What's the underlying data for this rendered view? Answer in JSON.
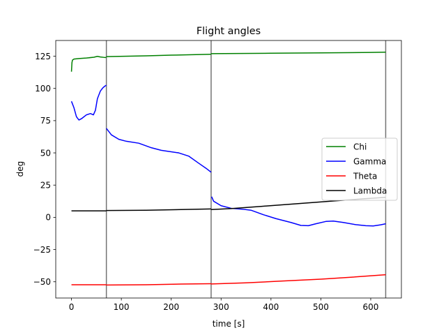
{
  "chart_data": {
    "type": "line",
    "title": "Flight angles",
    "xlabel": "time [s]",
    "ylabel": "deg",
    "xlim": [
      -31.5,
      661.5
    ],
    "ylim": [
      -62.6,
      137.2
    ],
    "xticks": [
      0,
      100,
      200,
      300,
      400,
      500,
      600
    ],
    "yticks": [
      -50,
      -25,
      0,
      25,
      50,
      75,
      100,
      125
    ],
    "grid": false,
    "legend_position": "center-right",
    "vlines": [
      70,
      280,
      630
    ],
    "series": [
      {
        "name": "Chi",
        "color": "#008000",
        "segments": [
          [
            [
              0,
              113
            ],
            [
              1,
              120
            ],
            [
              2,
              122
            ],
            [
              5,
              122.8
            ],
            [
              15,
              123.2
            ],
            [
              30,
              123.6
            ],
            [
              45,
              124.2
            ],
            [
              52,
              124.9
            ],
            [
              58,
              124.4
            ],
            [
              65,
              124.1
            ],
            [
              70,
              124
            ]
          ],
          [
            [
              70,
              124.7
            ],
            [
              150,
              125.3
            ],
            [
              200,
              125.8
            ],
            [
              280,
              126.5
            ]
          ],
          [
            [
              280,
              127
            ],
            [
              400,
              127.3
            ],
            [
              500,
              127.6
            ],
            [
              600,
              127.9
            ],
            [
              630,
              128.1
            ]
          ]
        ]
      },
      {
        "name": "Gamma",
        "color": "#0000ff",
        "segments": [
          [
            [
              0,
              90
            ],
            [
              5,
              85
            ],
            [
              10,
              78
            ],
            [
              15,
              75.5
            ],
            [
              20,
              76.5
            ],
            [
              30,
              79.5
            ],
            [
              38,
              80.5
            ],
            [
              44,
              79.5
            ],
            [
              48,
              83
            ],
            [
              52,
              92
            ],
            [
              58,
              98
            ],
            [
              63,
              100.5
            ],
            [
              67,
              101.8
            ],
            [
              70,
              102.5
            ]
          ],
          [
            [
              70,
              69
            ],
            [
              80,
              64
            ],
            [
              95,
              60.5
            ],
            [
              110,
              59
            ],
            [
              135,
              57.5
            ],
            [
              160,
              54
            ],
            [
              180,
              52
            ],
            [
              215,
              50
            ],
            [
              235,
              47.5
            ],
            [
              255,
              42
            ],
            [
              270,
              38
            ],
            [
              280,
              35
            ]
          ],
          [
            [
              281,
              16
            ],
            [
              285,
              12.5
            ],
            [
              300,
              9
            ],
            [
              320,
              7
            ],
            [
              345,
              6.2
            ],
            [
              360,
              5.5
            ],
            [
              385,
              2
            ],
            [
              410,
              -1
            ],
            [
              440,
              -4
            ],
            [
              460,
              -6.3
            ],
            [
              475,
              -6.5
            ],
            [
              490,
              -5
            ],
            [
              510,
              -3.2
            ],
            [
              525,
              -2.9
            ],
            [
              545,
              -4
            ],
            [
              570,
              -5.7
            ],
            [
              590,
              -6.5
            ],
            [
              605,
              -6.7
            ],
            [
              620,
              -5.8
            ],
            [
              630,
              -5
            ]
          ]
        ]
      },
      {
        "name": "Theta",
        "color": "#ff0000",
        "segments": [
          [
            [
              0,
              -52.3
            ],
            [
              70,
              -52.3
            ]
          ],
          [
            [
              70,
              -52.5
            ],
            [
              150,
              -52.3
            ],
            [
              220,
              -51.8
            ],
            [
              280,
              -51.5
            ]
          ],
          [
            [
              280,
              -51.7
            ],
            [
              350,
              -50.8
            ],
            [
              420,
              -49.5
            ],
            [
              500,
              -48
            ],
            [
              560,
              -46.5
            ],
            [
              630,
              -44.5
            ]
          ]
        ]
      },
      {
        "name": "Lambda",
        "color": "#000000",
        "segments": [
          [
            [
              0,
              5
            ],
            [
              70,
              5
            ]
          ],
          [
            [
              70,
              5.3
            ],
            [
              150,
              5.5
            ],
            [
              220,
              6
            ],
            [
              280,
              6.5
            ]
          ],
          [
            [
              280,
              6
            ],
            [
              320,
              6.8
            ],
            [
              380,
              8.5
            ],
            [
              450,
              10.5
            ],
            [
              520,
              12.5
            ],
            [
              580,
              14.2
            ],
            [
              630,
              15.5
            ]
          ]
        ]
      }
    ]
  }
}
